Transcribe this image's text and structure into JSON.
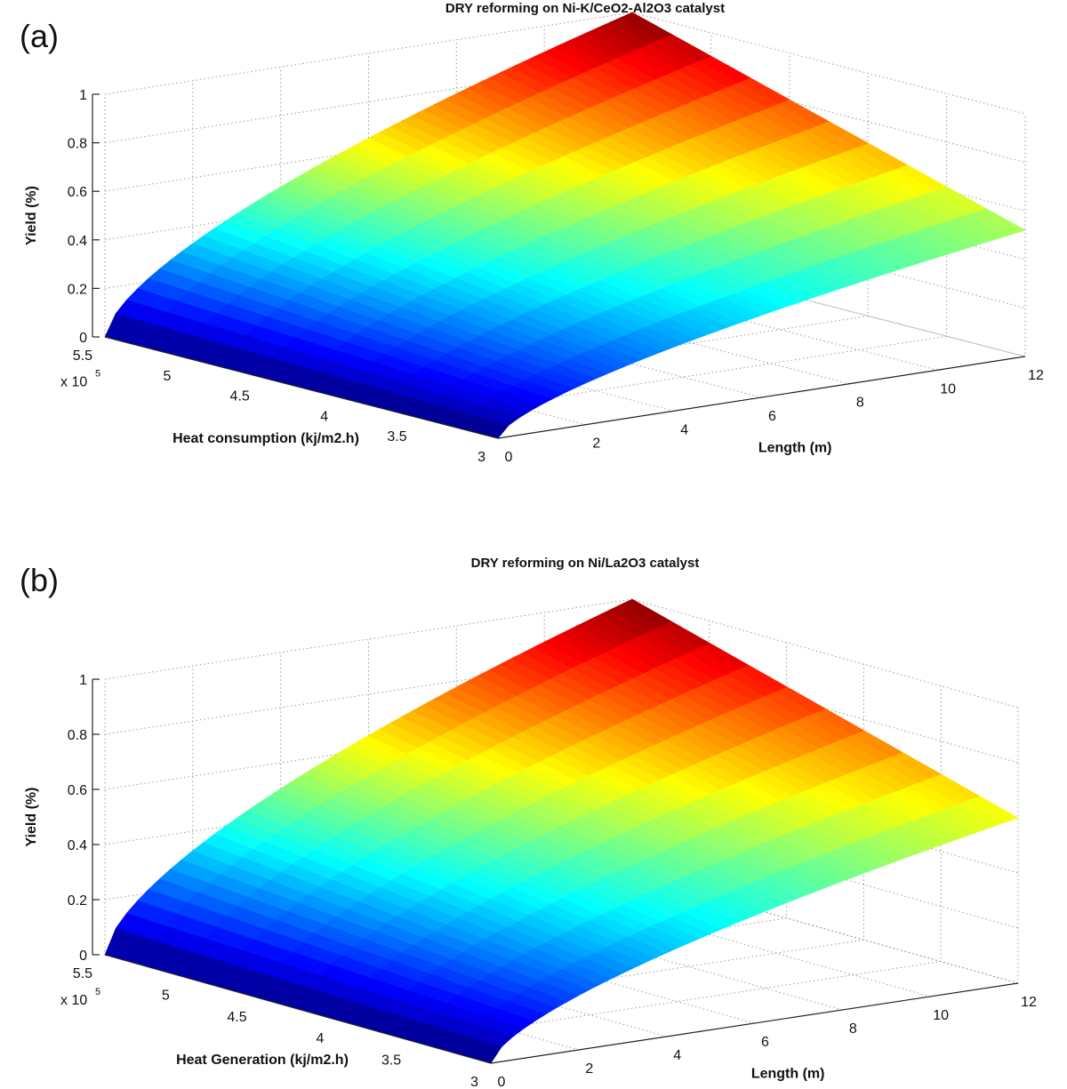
{
  "chart_data": [
    {
      "panel_label": "(a)",
      "type": "surface3d",
      "title": "DRY reforming on  Ni-K/CeO2-Al2O3 catalyst",
      "xlabel": "Heat consumption (kj/m2.h)",
      "x_multiplier": "x 10",
      "x_exponent": "5",
      "ylabel": "Length (m)",
      "zlabel": "Yield (%)",
      "xlim": [
        3,
        5.5
      ],
      "ylim": [
        0,
        12
      ],
      "zlim": [
        0,
        1
      ],
      "x_ticks": [
        "3",
        "3.5",
        "4",
        "4.5",
        "5",
        "5.5"
      ],
      "y_ticks": [
        "0",
        "2",
        "4",
        "6",
        "8",
        "10",
        "12"
      ],
      "z_ticks": [
        "0",
        "0.2",
        "0.4",
        "0.6",
        "0.8",
        "1"
      ],
      "surface": {
        "description_points": [
          {
            "heat": 5.5,
            "length": 12,
            "yield": 1.0
          },
          {
            "heat": 3.0,
            "length": 12,
            "yield": 0.52
          },
          {
            "heat": 5.5,
            "length": 0,
            "yield": 0.0
          },
          {
            "heat": 3.0,
            "length": 0,
            "yield": 0.0
          }
        ],
        "yield_at_max_length_high_heat": 1.0,
        "yield_at_max_length_low_heat": 0.52
      }
    },
    {
      "panel_label": "(b)",
      "type": "surface3d",
      "title": "DRY reforming on Ni/La2O3 catalyst",
      "xlabel": "Heat Generation (kj/m2.h)",
      "x_multiplier": "x 10",
      "x_exponent": "5",
      "ylabel": "Length (m)",
      "zlabel": "Yield (%)",
      "xlim": [
        3,
        5.5
      ],
      "ylim": [
        0,
        12
      ],
      "zlim": [
        0,
        1
      ],
      "x_ticks": [
        "3",
        "3.5",
        "4",
        "4.5",
        "5",
        "5.5"
      ],
      "y_ticks": [
        "0",
        "2",
        "4",
        "6",
        "8",
        "10",
        "12"
      ],
      "z_ticks": [
        "0",
        "0.2",
        "0.4",
        "0.6",
        "0.8",
        "1"
      ],
      "surface": {
        "description_points": [
          {
            "heat": 5.5,
            "length": 12,
            "yield": 1.0
          },
          {
            "heat": 3.0,
            "length": 12,
            "yield": 0.6
          },
          {
            "heat": 5.5,
            "length": 0,
            "yield": 0.0
          },
          {
            "heat": 3.0,
            "length": 0,
            "yield": 0.0
          }
        ],
        "yield_at_max_length_high_heat": 1.0,
        "yield_at_max_length_low_heat": 0.6
      }
    }
  ]
}
